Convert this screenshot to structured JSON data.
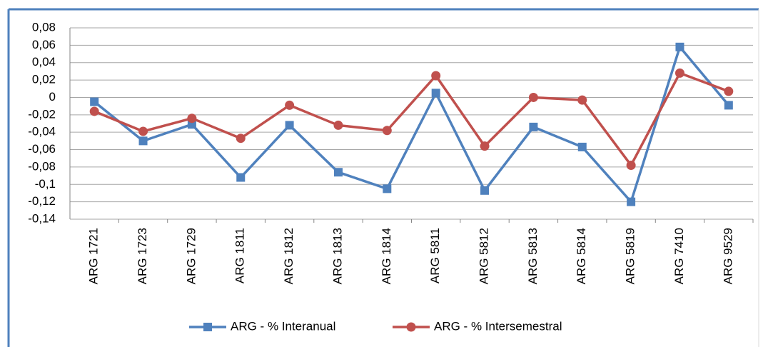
{
  "chart_data": {
    "type": "line",
    "categories": [
      "ARG 1721",
      "ARG 1723",
      "ARG 1729",
      "ARG 1811",
      "ARG 1812",
      "ARG 1813",
      "ARG 1814",
      "ARG 5811",
      "ARG 5812",
      "ARG 5813",
      "ARG 5814",
      "ARG 5819",
      "ARG 7410",
      "ARG 9529"
    ],
    "series": [
      {
        "name": "ARG - % Interanual",
        "color": "#4f81bd",
        "marker": "square",
        "values": [
          -0.005,
          -0.05,
          -0.031,
          -0.092,
          -0.032,
          -0.086,
          -0.105,
          0.005,
          -0.107,
          -0.034,
          -0.057,
          -0.12,
          0.058,
          -0.009
        ]
      },
      {
        "name": "ARG - % Intersemestral",
        "color": "#c0504d",
        "marker": "circle",
        "values": [
          -0.016,
          -0.039,
          -0.024,
          -0.047,
          -0.009,
          -0.032,
          -0.038,
          0.025,
          -0.056,
          0,
          -0.003,
          -0.078,
          0.028,
          0.007
        ]
      }
    ],
    "ylim": [
      -0.14,
      0.08
    ],
    "yticks": [
      {
        "value": -0.14,
        "label": "-0,14"
      },
      {
        "value": -0.12,
        "label": "-0,12"
      },
      {
        "value": -0.1,
        "label": "-0,1"
      },
      {
        "value": -0.08,
        "label": "-0,08"
      },
      {
        "value": -0.06,
        "label": "-0,06"
      },
      {
        "value": -0.04,
        "label": "-0,04"
      },
      {
        "value": -0.02,
        "label": "-0,02"
      },
      0,
      {
        "value": 0.02,
        "label": "0,02"
      },
      {
        "value": 0.04,
        "label": "0,04"
      },
      {
        "value": 0.06,
        "label": "0,06"
      },
      {
        "value": 0.08,
        "label": "0,08"
      }
    ],
    "grid": true,
    "legend": "bottom"
  }
}
